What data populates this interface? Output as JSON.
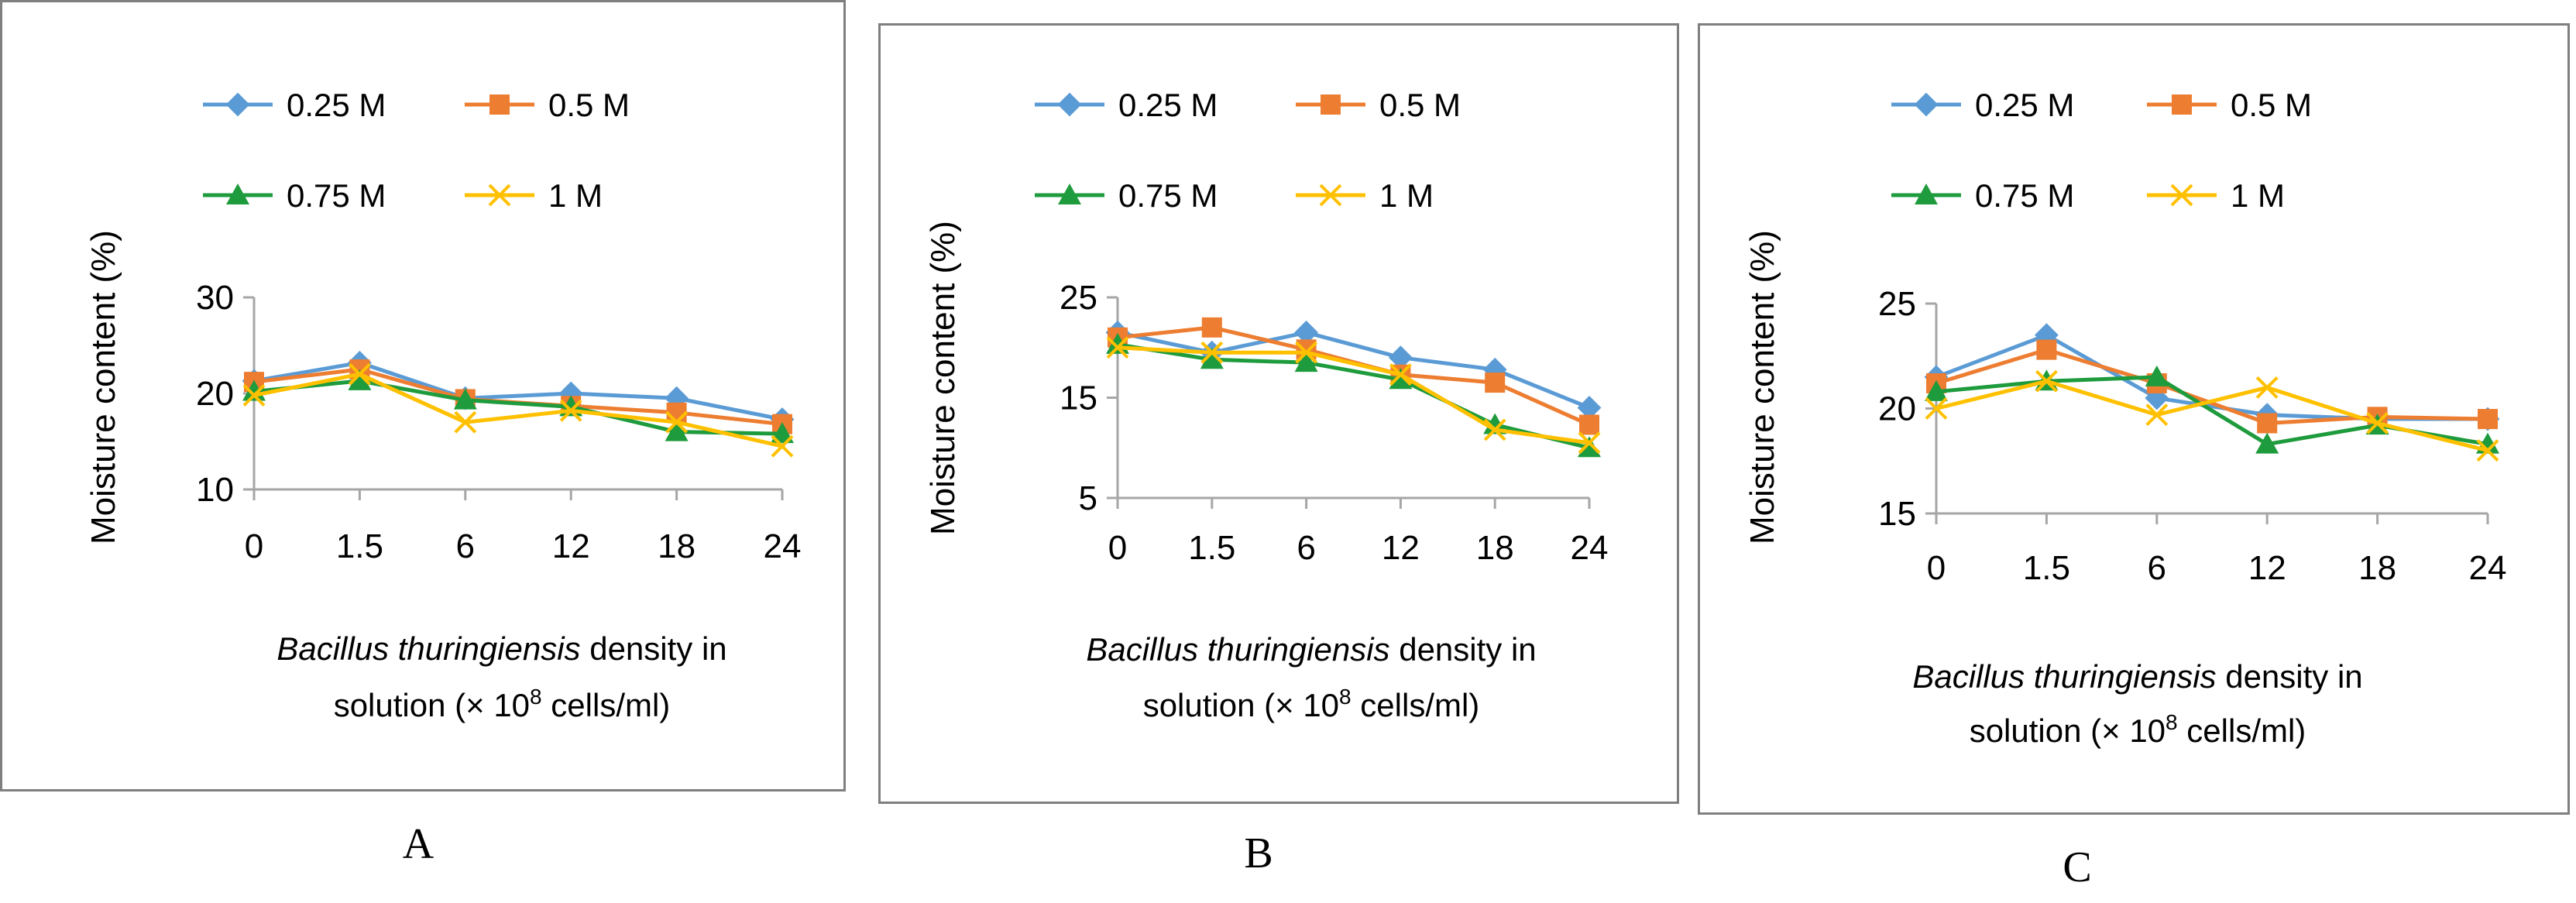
{
  "colors": {
    "s025": "#5B9BD5",
    "s05": "#ED7D31",
    "s075": "#1E9B3C",
    "s1": "#FFC000",
    "axis": "#A6A6A6",
    "frame": "#7F7F7F"
  },
  "chart_data": [
    {
      "type": "line",
      "panel_label": "A",
      "ylabel": "Moisture content (%)",
      "xlabel_italic": "Bacillus thuringiensis",
      "xlabel_rest": " density in",
      "xlabel_line2_pre": "solution  (× 10",
      "xlabel_sup": "8",
      "xlabel_line2_post": " cells/ml)",
      "categories": [
        "0",
        "1.5",
        "6",
        "12",
        "18",
        "24"
      ],
      "ylim": [
        10,
        30
      ],
      "yticks": [
        10,
        20,
        30
      ],
      "series": [
        {
          "name": "0.25 M",
          "marker": "diamond",
          "values": [
            21.3,
            23.2,
            19.5,
            20.0,
            19.5,
            17.3
          ]
        },
        {
          "name": "0.5 M",
          "marker": "square",
          "values": [
            21.2,
            22.5,
            19.4,
            18.7,
            18.0,
            16.8
          ]
        },
        {
          "name": "0.75 M",
          "marker": "triangle",
          "values": [
            20.2,
            21.3,
            19.3,
            18.6,
            16.0,
            15.8
          ]
        },
        {
          "name": "1 M",
          "marker": "x",
          "values": [
            19.8,
            22.0,
            17.0,
            18.2,
            17.0,
            14.5
          ]
        }
      ]
    },
    {
      "type": "line",
      "panel_label": "B",
      "ylabel": "Moisture content (%)",
      "xlabel_italic": "Bacillus thuringiensis",
      "xlabel_rest": " density in",
      "xlabel_line2_pre": "solution  (× 10",
      "xlabel_sup": "8",
      "xlabel_line2_post": " cells/ml)",
      "categories": [
        "0",
        "1.5",
        "6",
        "12",
        "18",
        "24"
      ],
      "ylim": [
        5,
        25
      ],
      "yticks": [
        5,
        15,
        25
      ],
      "series": [
        {
          "name": "0.25 M",
          "marker": "diamond",
          "values": [
            21.5,
            19.5,
            21.5,
            19.0,
            17.8,
            14.0
          ]
        },
        {
          "name": "0.5 M",
          "marker": "square",
          "values": [
            21.0,
            22.0,
            19.8,
            17.3,
            16.5,
            12.3
          ]
        },
        {
          "name": "0.75 M",
          "marker": "triangle",
          "values": [
            20.3,
            18.8,
            18.5,
            16.8,
            12.3,
            10.0
          ]
        },
        {
          "name": "1 M",
          "marker": "x",
          "values": [
            20.0,
            19.5,
            19.5,
            17.3,
            11.8,
            10.5
          ]
        }
      ]
    },
    {
      "type": "line",
      "panel_label": "C",
      "ylabel": "Moisture content (%)",
      "xlabel_italic": "Bacillus thuringiensis",
      "xlabel_rest": " density in",
      "xlabel_line2_pre": "solution  (× 10",
      "xlabel_sup": "8",
      "xlabel_line2_post": " cells/ml)",
      "categories": [
        "0",
        "1.5",
        "6",
        "12",
        "18",
        "24"
      ],
      "ylim": [
        15,
        25
      ],
      "yticks": [
        15,
        20,
        25
      ],
      "series": [
        {
          "name": "0.25 M",
          "marker": "diamond",
          "values": [
            21.5,
            23.5,
            20.5,
            19.7,
            19.5,
            19.5
          ]
        },
        {
          "name": "0.5 M",
          "marker": "square",
          "values": [
            21.2,
            22.8,
            21.2,
            19.3,
            19.6,
            19.5
          ]
        },
        {
          "name": "0.75 M",
          "marker": "triangle",
          "values": [
            20.8,
            21.3,
            21.5,
            18.3,
            19.2,
            18.3
          ]
        },
        {
          "name": "1 M",
          "marker": "x",
          "values": [
            20.0,
            21.3,
            19.7,
            21.0,
            19.3,
            18.0
          ]
        }
      ]
    }
  ]
}
